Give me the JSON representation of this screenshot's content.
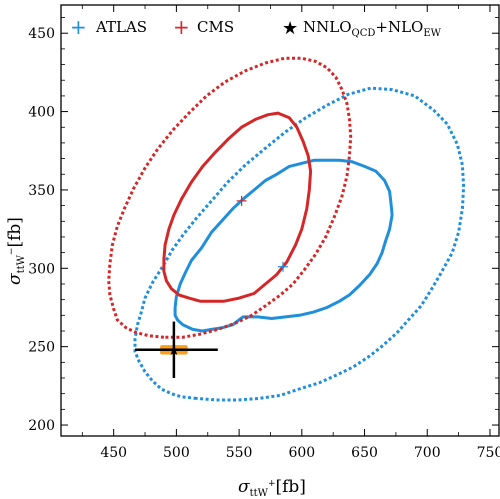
{
  "chart_data": {
    "type": "scatter",
    "xlabel": "σ",
    "xlabel_sub": "ttW",
    "xlabel_sup": "+",
    "xlabel_unit": "[fb]",
    "ylabel": "σ",
    "ylabel_sub": "ttW",
    "ylabel_sup": "−",
    "ylabel_unit": "[fb]",
    "xlim": [
      408,
      758
    ],
    "ylim": [
      193,
      468
    ],
    "xticks": [
      450,
      500,
      550,
      600,
      650,
      700,
      750
    ],
    "yticks": [
      200,
      250,
      300,
      350,
      400,
      450
    ],
    "grid": false,
    "legend_position": "top",
    "legend": [
      {
        "marker": "+",
        "label": "ATLAS",
        "color": "#1f8fdc"
      },
      {
        "marker": "+",
        "label": "CMS",
        "color": "#d62728"
      },
      {
        "marker": "★",
        "label": "NNLO",
        "sub1": "QCD",
        "mid": "+NLO",
        "sub2": "EW",
        "color": "#000000"
      }
    ],
    "series": [
      {
        "name": "ATLAS",
        "color": "#1f8fdc",
        "central": [
          585,
          301
        ],
        "contours": [
          {
            "style": "solid",
            "points": [
              [
                553,
                269
              ],
              [
                545,
                264
              ],
              [
                536,
                262
              ],
              [
                528,
                261
              ],
              [
                521,
                260
              ],
              [
                513,
                261
              ],
              [
                505,
                264
              ],
              [
                501,
                267
              ],
              [
                499,
                270
              ],
              [
                499,
                275
              ],
              [
                500,
                282
              ],
              [
                503,
                290
              ],
              [
                507,
                297
              ],
              [
                512,
                305
              ],
              [
                520,
                313
              ],
              [
                528,
                323
              ],
              [
                536,
                330
              ],
              [
                545,
                338
              ],
              [
                553,
                344
              ],
              [
                562,
                350
              ],
              [
                571,
                356
              ],
              [
                580,
                360
              ],
              [
                590,
                365
              ],
              [
                600,
                367
              ],
              [
                610,
                369
              ],
              [
                620,
                369
              ],
              [
                630,
                369
              ],
              [
                640,
                368
              ],
              [
                650,
                365
              ],
              [
                659,
                362
              ],
              [
                666,
                356
              ],
              [
                670,
                349
              ],
              [
                671,
                342
              ],
              [
                672,
                334
              ],
              [
                670,
                325
              ],
              [
                667,
                318
              ],
              [
                664,
                310
              ],
              [
                660,
                303
              ],
              [
                654,
                296
              ],
              [
                646,
                289
              ],
              [
                638,
                283
              ],
              [
                630,
                279
              ],
              [
                620,
                275
              ],
              [
                609,
                272
              ],
              [
                598,
                270
              ],
              [
                587,
                269
              ],
              [
                576,
                268
              ],
              [
                565,
                269
              ],
              [
                553,
                269
              ]
            ]
          },
          {
            "style": "dotted",
            "points": [
              [
                516,
                217
              ],
              [
                504,
                218
              ],
              [
                496,
                220
              ],
              [
                488,
                223
              ],
              [
                481,
                228
              ],
              [
                475,
                234
              ],
              [
                470,
                241
              ],
              [
                467,
                247
              ],
              [
                467,
                255
              ],
              [
                469,
                264
              ],
              [
                472,
                272
              ],
              [
                475,
                281
              ],
              [
                481,
                291
              ],
              [
                489,
                301
              ],
              [
                497,
                312
              ],
              [
                506,
                322
              ],
              [
                516,
                332
              ],
              [
                528,
                343
              ],
              [
                541,
                355
              ],
              [
                555,
                366
              ],
              [
                570,
                376
              ],
              [
                587,
                387
              ],
              [
                603,
                396
              ],
              [
                620,
                404
              ],
              [
                637,
                411
              ],
              [
                655,
                415
              ],
              [
                672,
                414
              ],
              [
                690,
                410
              ],
              [
                705,
                401
              ],
              [
                716,
                392
              ],
              [
                724,
                379
              ],
              [
                728,
                366
              ],
              [
                729,
                352
              ],
              [
                728,
                338
              ],
              [
                725,
                323
              ],
              [
                720,
                310
              ],
              [
                711,
                297
              ],
              [
                703,
                286
              ],
              [
                695,
                276
              ],
              [
                686,
                268
              ],
              [
                676,
                259
              ],
              [
                665,
                251
              ],
              [
                654,
                244
              ],
              [
                641,
                237
              ],
              [
                628,
                232
              ],
              [
                614,
                227
              ],
              [
                598,
                223
              ],
              [
                583,
                219
              ],
              [
                566,
                217
              ],
              [
                549,
                216
              ],
              [
                532,
                216
              ],
              [
                516,
                217
              ]
            ]
          }
        ]
      },
      {
        "name": "CMS",
        "color": "#d62728",
        "central": [
          552,
          343
        ],
        "contours": [
          {
            "style": "solid",
            "points": [
              [
                538,
                279
              ],
              [
                528,
                279
              ],
              [
                519,
                279
              ],
              [
                510,
                281
              ],
              [
                502,
                283
              ],
              [
                496,
                287
              ],
              [
                492,
                292
              ],
              [
                490,
                298
              ],
              [
                490,
                306
              ],
              [
                491,
                315
              ],
              [
                494,
                325
              ],
              [
                498,
                334
              ],
              [
                504,
                344
              ],
              [
                512,
                355
              ],
              [
                521,
                365
              ],
              [
                531,
                374
              ],
              [
                542,
                383
              ],
              [
                552,
                390
              ],
              [
                563,
                395
              ],
              [
                573,
                398
              ],
              [
                581,
                399
              ],
              [
                590,
                396
              ],
              [
                596,
                390
              ],
              [
                601,
                381
              ],
              [
                605,
                372
              ],
              [
                607,
                362
              ],
              [
                606,
                350
              ],
              [
                604,
                338
              ],
              [
                600,
                325
              ],
              [
                595,
                315
              ],
              [
                588,
                304
              ],
              [
                580,
                296
              ],
              [
                571,
                290
              ],
              [
                562,
                284
              ],
              [
                550,
                281
              ],
              [
                538,
                279
              ]
            ]
          },
          {
            "style": "dotted",
            "points": [
              [
                490,
                256
              ],
              [
                478,
                257
              ],
              [
                468,
                259
              ],
              [
                460,
                262
              ],
              [
                453,
                267
              ],
              [
                450,
                274
              ],
              [
                447,
                283
              ],
              [
                446,
                292
              ],
              [
                447,
                303
              ],
              [
                449,
                315
              ],
              [
                453,
                327
              ],
              [
                459,
                339
              ],
              [
                466,
                351
              ],
              [
                475,
                364
              ],
              [
                485,
                376
              ],
              [
                497,
                388
              ],
              [
                510,
                399
              ],
              [
                524,
                410
              ],
              [
                539,
                419
              ],
              [
                555,
                426
              ],
              [
                571,
                431
              ],
              [
                586,
                434
              ],
              [
                600,
                434
              ],
              [
                611,
                432
              ],
              [
                620,
                428
              ],
              [
                627,
                422
              ],
              [
                632,
                414
              ],
              [
                636,
                405
              ],
              [
                638,
                395
              ],
              [
                639,
                384
              ],
              [
                638,
                372
              ],
              [
                636,
                359
              ],
              [
                632,
                346
              ],
              [
                626,
                333
              ],
              [
                619,
                320
              ],
              [
                611,
                309
              ],
              [
                602,
                299
              ],
              [
                593,
                290
              ],
              [
                583,
                283
              ],
              [
                571,
                276
              ],
              [
                560,
                270
              ],
              [
                547,
                265
              ],
              [
                533,
                261
              ],
              [
                519,
                258
              ],
              [
                505,
                256
              ],
              [
                490,
                256
              ]
            ]
          }
        ]
      },
      {
        "name": "NNLO+NLO",
        "color": "#000000",
        "central": [
          498,
          248
        ],
        "x_error": [
          467,
          533
        ],
        "y_error": [
          230,
          266
        ],
        "band": {
          "color": "#ff9c1a",
          "x": [
            487,
            509
          ],
          "y": [
            245,
            251
          ]
        }
      }
    ]
  }
}
